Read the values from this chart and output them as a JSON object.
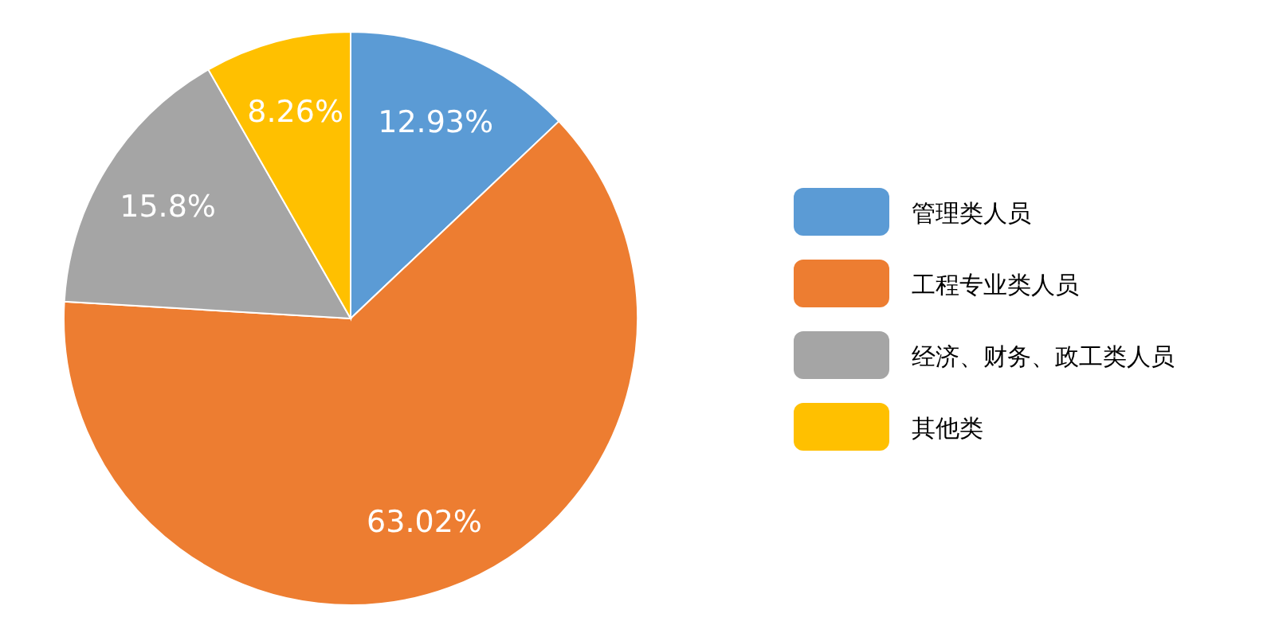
{
  "chart_data": {
    "type": "pie",
    "categories": [
      "管理类人员",
      "工程专业类人员",
      "经济、财务、政工类人员",
      "其他类"
    ],
    "values": [
      12.93,
      63.02,
      15.8,
      8.26
    ],
    "colors": [
      "#5b9bd5",
      "#ed7d31",
      "#a5a5a5",
      "#ffc000"
    ],
    "value_labels": [
      "12.93%",
      "63.02%",
      "15.8%",
      "8.26%"
    ],
    "legend": "right"
  }
}
